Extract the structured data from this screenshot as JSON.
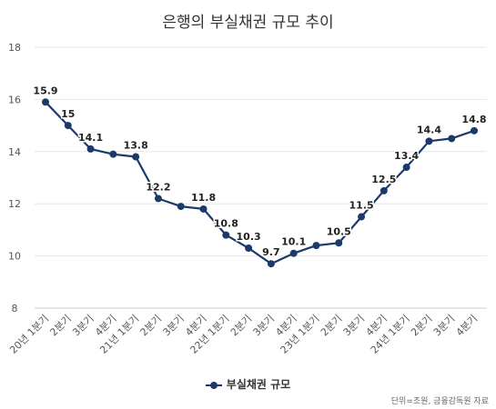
{
  "chart_data": {
    "type": "line",
    "title": "은행의 부실채권 규모 추이",
    "categories": [
      "20년 1분기",
      "2분기",
      "3분기",
      "4분기",
      "21년 1분기",
      "2분기",
      "3분기",
      "4분기",
      "22년 1분기",
      "2분기",
      "3분기",
      "4분기",
      "23년 1분기",
      "2분기",
      "3분기",
      "4분기",
      "24년 1분기",
      "2분기",
      "3분기",
      "4분기"
    ],
    "series": [
      {
        "name": "부실채권 규모",
        "values": [
          15.9,
          15,
          14.1,
          13.9,
          13.8,
          12.2,
          11.9,
          11.8,
          10.8,
          10.3,
          9.7,
          10.1,
          10.4,
          10.5,
          11.5,
          12.5,
          13.4,
          14.4,
          14.5,
          14.8
        ],
        "data_labels": [
          "15.9",
          "15",
          "14.1",
          "",
          "13.8",
          "12.2",
          "",
          "11.8",
          "10.8",
          "10.3",
          "9.7",
          "10.1",
          "",
          "10.5",
          "11.5",
          "12.5",
          "13.4",
          "14.4",
          "",
          "14.8"
        ]
      }
    ],
    "yticks": [
      "8",
      "10",
      "12",
      "14",
      "16",
      "18"
    ],
    "ylim": [
      8,
      18
    ],
    "grid": true,
    "legend_position": "bottom",
    "line_color": "#1b3a6b"
  },
  "source_note": "단위=조원, 금융감독원 자료"
}
